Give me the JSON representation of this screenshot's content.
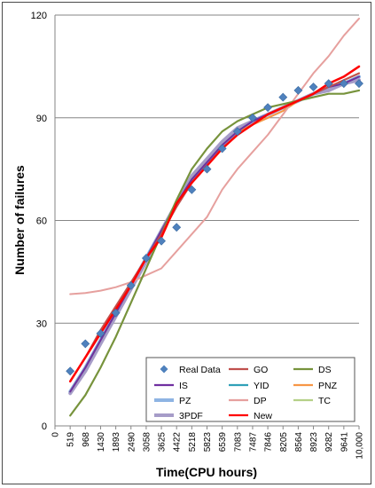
{
  "chart_data": {
    "type": "line",
    "title": "",
    "xlabel": "Time(CPU hours)",
    "ylabel": "Number of failures",
    "ylim": [
      0,
      120
    ],
    "yticks": [
      0,
      30,
      60,
      90,
      120
    ],
    "grid": "horizontal",
    "legend_position": "bottom-right",
    "categories": [
      "0",
      "519",
      "968",
      "1430",
      "1893",
      "2490",
      "3058",
      "3625",
      "4422",
      "5218",
      "5823",
      "6539",
      "7083",
      "7487",
      "7846",
      "8205",
      "8564",
      "8923",
      "9282",
      "9641",
      "10,000"
    ],
    "series": [
      {
        "name": "Real Data",
        "kind": "marker",
        "color": "#4f81bd",
        "values": [
          null,
          16,
          24,
          27,
          33,
          41,
          49,
          54,
          58,
          69,
          75,
          81,
          86,
          90,
          93,
          96,
          98,
          99,
          100,
          100,
          100
        ]
      },
      {
        "name": "GO",
        "kind": "line",
        "color": "#c0504d",
        "values": [
          null,
          13,
          20,
          28,
          35,
          42,
          49,
          56,
          64,
          71,
          76,
          81,
          85,
          88,
          91,
          93,
          95,
          97,
          99,
          101,
          103
        ]
      },
      {
        "name": "DS",
        "kind": "line",
        "color": "#77933c",
        "values": [
          null,
          3,
          9,
          17,
          26,
          36,
          46,
          56,
          66,
          75,
          81,
          86,
          89,
          91,
          93,
          94,
          95,
          96,
          97,
          97,
          98
        ]
      },
      {
        "name": "IS",
        "kind": "line",
        "color": "#7030a0",
        "values": [
          null,
          10,
          17,
          25,
          33,
          41,
          49,
          57,
          65,
          72,
          77,
          82,
          86,
          89,
          91,
          93,
          95,
          97,
          99,
          100,
          102
        ]
      },
      {
        "name": "YID",
        "kind": "line",
        "color": "#31a0b8",
        "values": [
          null,
          10,
          17,
          25,
          33,
          41,
          49,
          57,
          65,
          72,
          77,
          82,
          86,
          89,
          91,
          93,
          95,
          97,
          99,
          100,
          102
        ]
      },
      {
        "name": "PNZ",
        "kind": "line",
        "color": "#f79646",
        "values": [
          null,
          10,
          17,
          25,
          33,
          41,
          49,
          57,
          65,
          72,
          77,
          82,
          86,
          88,
          90,
          92,
          95,
          97,
          99,
          101,
          103
        ]
      },
      {
        "name": "PZ",
        "kind": "line",
        "color": "#8eb4e3",
        "values": [
          null,
          10,
          17,
          25,
          33,
          41,
          49,
          57,
          65,
          72,
          77,
          82,
          86,
          89,
          91,
          93,
          95,
          97,
          99,
          100,
          102
        ]
      },
      {
        "name": "DP",
        "kind": "line",
        "color": "#e6a09e",
        "values": [
          null,
          38.5,
          38.8,
          39.5,
          40.5,
          42,
          44,
          46,
          51,
          56,
          61,
          69,
          75,
          80,
          85,
          91,
          97,
          103,
          108,
          114,
          119
        ]
      },
      {
        "name": "TC",
        "kind": "line",
        "color": "#b5d088",
        "values": [
          null,
          10,
          17,
          25,
          33,
          41,
          49,
          57,
          65,
          72,
          77,
          82,
          86,
          88,
          90,
          92,
          95,
          97,
          99,
          100,
          102
        ]
      },
      {
        "name": "3PDF",
        "kind": "line",
        "color": "#a69cc8",
        "values": [
          null,
          9.5,
          16,
          24,
          32,
          40,
          48,
          57,
          65,
          73,
          78,
          83,
          87,
          89,
          91,
          93,
          95,
          97,
          98,
          100,
          101
        ]
      },
      {
        "name": "New",
        "kind": "line",
        "color": "#ff0000",
        "values": [
          null,
          13,
          20,
          27,
          34,
          41,
          49,
          55,
          65,
          71,
          76,
          81,
          85,
          88,
          91,
          93,
          95,
          97,
          100,
          102,
          105
        ]
      }
    ]
  }
}
